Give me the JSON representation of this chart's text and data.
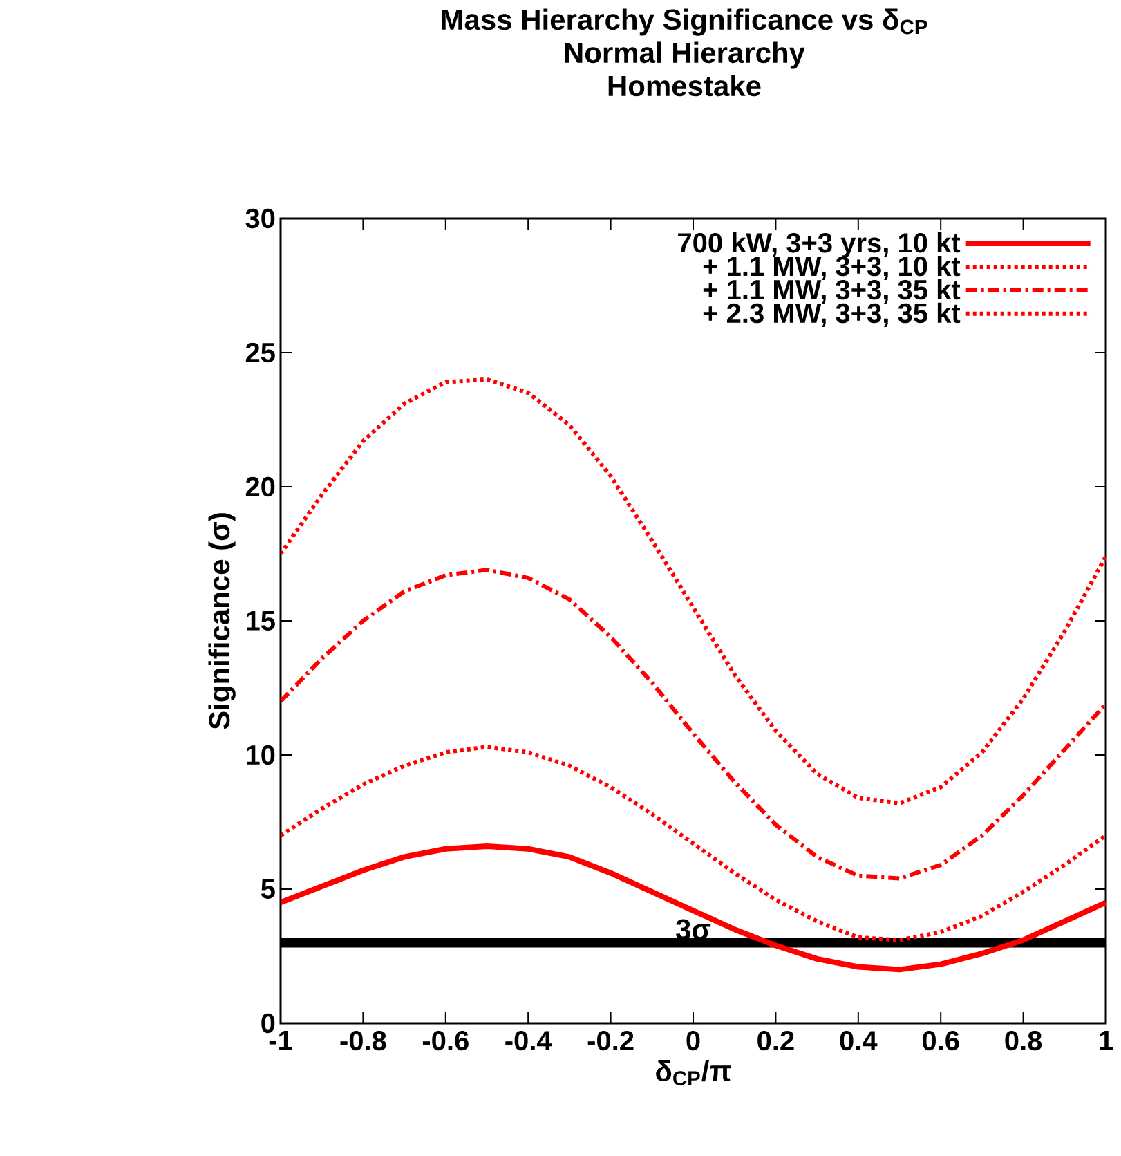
{
  "chart_data": {
    "type": "line",
    "title": "Mass Hierarchy Significance vs δ$_{CP}$\nNormal Hierarchy\nHomestake",
    "xlabel": "δ$_{CP}$/π",
    "ylabel": "Significance (σ)",
    "x": [
      -1,
      -0.9,
      -0.8,
      -0.7,
      -0.6,
      -0.5,
      -0.4,
      -0.3,
      -0.2,
      -0.1,
      0,
      0.1,
      0.2,
      0.3,
      0.4,
      0.5,
      0.6,
      0.7,
      0.8,
      0.9,
      1
    ],
    "series": [
      {
        "name": "700 kW, 3+3 yrs, 10 kt",
        "color": "#ff0000",
        "line_style": "solid",
        "values": [
          4.5,
          5.1,
          5.7,
          6.2,
          6.5,
          6.6,
          6.5,
          6.2,
          5.6,
          4.9,
          4.2,
          3.5,
          2.9,
          2.4,
          2.1,
          2.0,
          2.2,
          2.6,
          3.1,
          3.8,
          4.5
        ]
      },
      {
        "name": "+ 1.1 MW, 3+3, 10 kt",
        "color": "#ff0000",
        "line_style": "dotted",
        "values": [
          7.0,
          8.0,
          8.9,
          9.6,
          10.1,
          10.3,
          10.1,
          9.6,
          8.8,
          7.8,
          6.7,
          5.6,
          4.6,
          3.8,
          3.2,
          3.1,
          3.4,
          4.0,
          4.9,
          5.9,
          7.0
        ]
      },
      {
        "name": "+ 1.1 MW, 3+3, 35 kt",
        "color": "#ff0000",
        "line_style": "dashdot",
        "values": [
          12.0,
          13.6,
          15.0,
          16.1,
          16.7,
          16.9,
          16.6,
          15.8,
          14.4,
          12.7,
          10.8,
          9.0,
          7.4,
          6.2,
          5.5,
          5.4,
          5.9,
          7.0,
          8.5,
          10.2,
          11.9
        ]
      },
      {
        "name": "+ 2.3 MW, 3+3, 35 kt",
        "color": "#ff0000",
        "line_style": "dotted",
        "values": [
          17.5,
          19.7,
          21.7,
          23.1,
          23.9,
          24.0,
          23.5,
          22.3,
          20.4,
          18.0,
          15.5,
          13.0,
          10.9,
          9.3,
          8.4,
          8.2,
          8.8,
          10.1,
          12.1,
          14.6,
          17.4
        ]
      }
    ],
    "xlim": [
      -1,
      1
    ],
    "ylim": [
      0,
      30
    ],
    "xticks": [
      -1,
      -0.8,
      -0.6,
      -0.4,
      -0.2,
      0,
      0.2,
      0.4,
      0.6,
      0.8,
      1
    ],
    "yticks": [
      0,
      5,
      10,
      15,
      20,
      25,
      30
    ],
    "ref_lines": [
      {
        "axis": "y",
        "value": 3,
        "label": "3σ",
        "color": "#000000"
      }
    ],
    "grid": false,
    "legend": "top right",
    "marker": "none"
  }
}
